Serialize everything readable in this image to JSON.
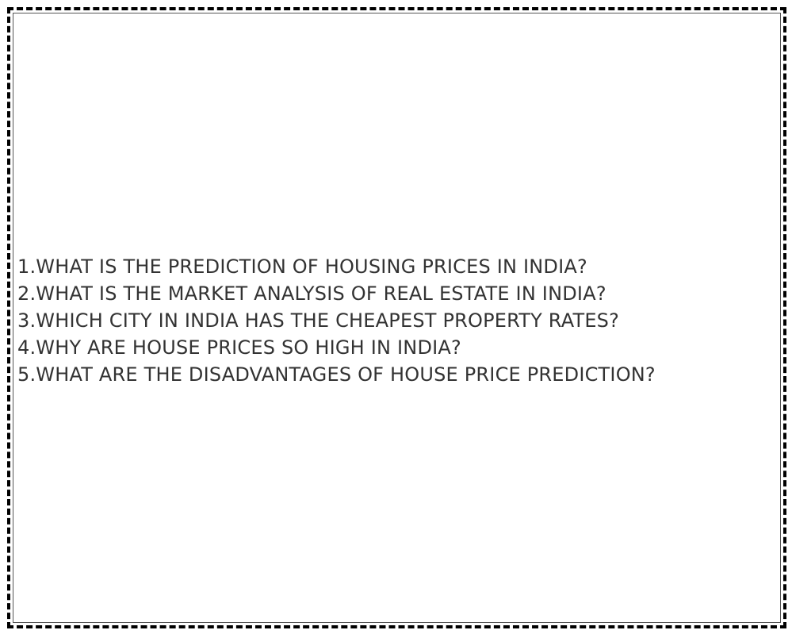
{
  "questions": [
    "1.WHAT IS THE PREDICTION OF HOUSING PRICES IN INDIA?",
    "2.WHAT IS THE MARKET ANALYSIS OF REAL ESTATE IN INDIA?",
    "3.WHICH CITY IN INDIA HAS THE CHEAPEST PROPERTY RATES?",
    "4.WHY ARE HOUSE PRICES SO HIGH IN INDIA?",
    "5.WHAT ARE THE DISADVANTAGES OF HOUSE PRICE PREDICTION?"
  ],
  "colors": {
    "text": "#333333",
    "border": "#000000",
    "background": "#ffffff"
  }
}
